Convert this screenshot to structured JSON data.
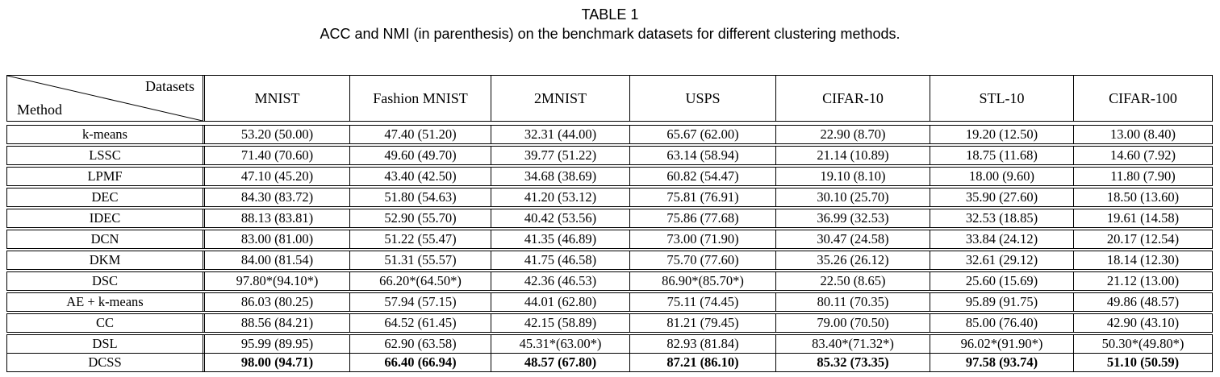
{
  "title": "TABLE 1",
  "subtitle": "ACC and NMI (in parenthesis) on the benchmark datasets for different clustering methods.",
  "table": {
    "corner": {
      "top": "Datasets",
      "bottom": "Method"
    },
    "columns": [
      "MNIST",
      "Fashion MNIST",
      "2MNIST",
      "USPS",
      "CIFAR-10",
      "STL-10",
      "CIFAR-100"
    ],
    "rows": [
      {
        "method": "k-means",
        "section": 1,
        "bold": false,
        "values": [
          "53.20 (50.00)",
          "47.40 (51.20)",
          "32.31 (44.00)",
          "65.67 (62.00)",
          "22.90 (8.70)",
          "19.20 (12.50)",
          "13.00 (8.40)"
        ]
      },
      {
        "method": "LSSC",
        "section": 1,
        "bold": false,
        "values": [
          "71.40 (70.60)",
          "49.60 (49.70)",
          "39.77 (51.22)",
          "63.14 (58.94)",
          "21.14 (10.89)",
          "18.75 (11.68)",
          "14.60 (7.92)"
        ]
      },
      {
        "method": "LPMF",
        "section": 1,
        "bold": false,
        "values": [
          "47.10 (45.20)",
          "43.40 (42.50)",
          "34.68 (38.69)",
          "60.82 (54.47)",
          "19.10 (8.10)",
          "18.00 (9.60)",
          "11.80 (7.90)"
        ]
      },
      {
        "method": "DEC",
        "section": 1,
        "bold": false,
        "values": [
          "84.30 (83.72)",
          "51.80 (54.63)",
          "41.20 (53.12)",
          "75.81 (76.91)",
          "30.10 (25.70)",
          "35.90 (27.60)",
          "18.50 (13.60)"
        ]
      },
      {
        "method": "IDEC",
        "section": 1,
        "bold": false,
        "values": [
          "88.13 (83.81)",
          "52.90 (55.70)",
          "40.42 (53.56)",
          "75.86 (77.68)",
          "36.99 (32.53)",
          "32.53 (18.85)",
          "19.61 (14.58)"
        ]
      },
      {
        "method": "DCN",
        "section": 1,
        "bold": false,
        "values": [
          "83.00 (81.00)",
          "51.22 (55.47)",
          "41.35 (46.89)",
          "73.00 (71.90)",
          "30.47 (24.58)",
          "33.84 (24.12)",
          "20.17 (12.54)"
        ]
      },
      {
        "method": "DKM",
        "section": 1,
        "bold": false,
        "values": [
          "84.00 (81.54)",
          "51.31 (55.57)",
          "41.75 (46.58)",
          "75.70 (77.60)",
          "35.26 (26.12)",
          "32.61 (29.12)",
          "18.14 (12.30)"
        ]
      },
      {
        "method": "DSC",
        "section": 1,
        "bold": false,
        "values": [
          "97.80*(94.10*)",
          "66.20*(64.50*)",
          "42.36 (46.53)",
          "86.90*(85.70*)",
          "22.50 (8.65)",
          "25.60 (15.69)",
          "21.12 (13.00)"
        ]
      },
      {
        "method": "AE + k-means",
        "section": 1,
        "bold": false,
        "values": [
          "86.03 (80.25)",
          "57.94 (57.15)",
          "44.01 (62.80)",
          "75.11 (74.45)",
          "80.11 (70.35)",
          "95.89 (91.75)",
          "49.86 (48.57)"
        ]
      },
      {
        "method": "CC",
        "section": 1,
        "bold": false,
        "values": [
          "88.56 (84.21)",
          "64.52 (61.45)",
          "42.15 (58.89)",
          "81.21 (79.45)",
          "79.00 (70.50)",
          "85.00 (76.40)",
          "42.90 (43.10)"
        ]
      },
      {
        "method": "DSL",
        "section": 2,
        "bold": false,
        "values": [
          "95.99 (89.95)",
          "62.90 (63.58)",
          "45.31*(63.00*)",
          "82.93 (81.84)",
          "83.40*(71.32*)",
          "96.02*(91.90*)",
          "50.30*(49.80*)"
        ]
      },
      {
        "method": "DCSS",
        "section": 2,
        "bold": true,
        "values": [
          "98.00 (94.71)",
          "66.40 (66.94)",
          "48.57 (67.80)",
          "87.21 (86.10)",
          "85.32 (73.35)",
          "97.58 (93.74)",
          "51.10 (50.59)"
        ]
      }
    ]
  }
}
